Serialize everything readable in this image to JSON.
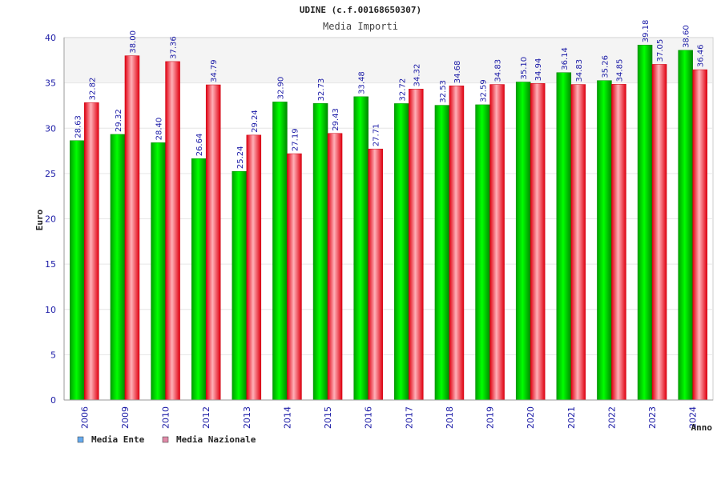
{
  "chart_data": {
    "type": "bar",
    "title": "UDINE (c.f.00168650307)",
    "subtitle": "Media Importi",
    "ylabel": "Euro",
    "xlabel": "Anno",
    "ylim": [
      0,
      40
    ],
    "yticks": [
      0,
      5,
      10,
      15,
      20,
      25,
      30,
      35,
      40
    ],
    "grid": true,
    "legend_position": "bottom-left",
    "categories": [
      "2006",
      "2009",
      "2010",
      "2012",
      "2013",
      "2014",
      "2015",
      "2016",
      "2017",
      "2018",
      "2019",
      "2020",
      "2021",
      "2022",
      "2023",
      "2024"
    ],
    "series": [
      {
        "name": "Media Ente",
        "color": "#00cc00",
        "legend_color": "#66aaee",
        "values": [
          28.63,
          29.32,
          28.4,
          26.64,
          25.24,
          32.9,
          32.73,
          33.48,
          32.72,
          32.53,
          32.59,
          35.1,
          36.14,
          35.26,
          39.18,
          38.6
        ],
        "labels": [
          "28.63",
          "29.32",
          "28.40",
          "26.64",
          "25.24",
          "32.90",
          "32.73",
          "33.48",
          "32.72",
          "32.53",
          "32.59",
          "35.10",
          "36.14",
          "35.26",
          "39.18",
          "38.60"
        ]
      },
      {
        "name": "Media Nazionale",
        "color": "#ee1122",
        "legend_color": "#e08aa8",
        "values": [
          32.82,
          38.0,
          37.36,
          34.79,
          29.24,
          27.19,
          29.43,
          27.71,
          34.32,
          34.68,
          34.83,
          34.94,
          34.83,
          34.85,
          37.05,
          36.46
        ],
        "labels": [
          "32.82",
          "38.00",
          "37.36",
          "34.79",
          "29.24",
          "27.19",
          "29.43",
          "27.71",
          "34.32",
          "34.68",
          "34.83",
          "34.94",
          "34.83",
          "34.85",
          "37.05",
          "36.46"
        ]
      }
    ]
  }
}
